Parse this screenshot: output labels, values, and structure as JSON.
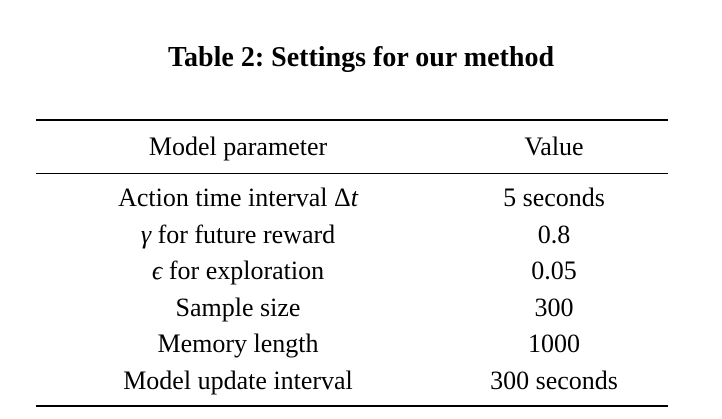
{
  "caption": "Table 2: Settings for our method",
  "table": {
    "headers": [
      "Model parameter",
      "Value"
    ],
    "rows": [
      {
        "param_prefix": "",
        "param_text": "Action time interval Δ",
        "param_suffix_math": "t",
        "value": "5 seconds"
      },
      {
        "param_prefix": "γ",
        "param_text": " for future reward",
        "param_suffix_math": "",
        "value": "0.8"
      },
      {
        "param_prefix": "ϵ",
        "param_text": " for exploration",
        "param_suffix_math": "",
        "value": "0.05"
      },
      {
        "param_prefix": "",
        "param_text": "Sample size",
        "param_suffix_math": "",
        "value": "300"
      },
      {
        "param_prefix": "",
        "param_text": "Memory length",
        "param_suffix_math": "",
        "value": "1000"
      },
      {
        "param_prefix": "",
        "param_text": "Model update interval",
        "param_suffix_math": "",
        "value": "300 seconds"
      }
    ]
  }
}
